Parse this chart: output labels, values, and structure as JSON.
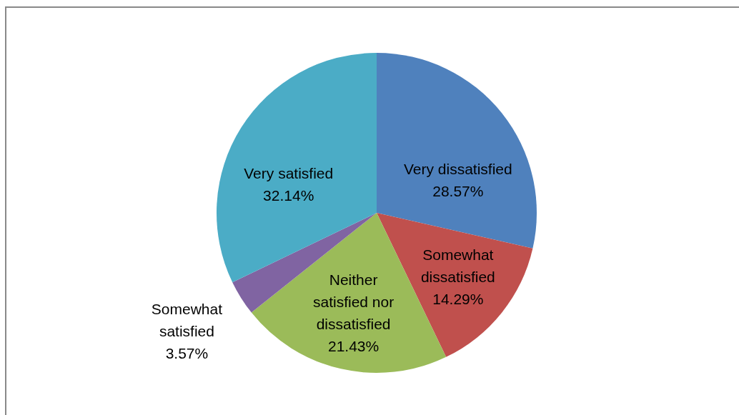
{
  "chart_data": {
    "type": "pie",
    "categories": [
      "Very dissatisfied",
      "Somewhat dissatisfied",
      "Neither satisfied nor dissatisfied",
      "Somewhat satisfied",
      "Very satisfied"
    ],
    "values": [
      28.57,
      14.29,
      21.43,
      3.57,
      32.14
    ],
    "colors": [
      "#4f81bd",
      "#c0504d",
      "#9bbb59",
      "#8064a2",
      "#4bacc6"
    ],
    "value_labels": [
      "28.57%",
      "14.29%",
      "21.43%",
      "3.57%",
      "32.14%"
    ]
  }
}
